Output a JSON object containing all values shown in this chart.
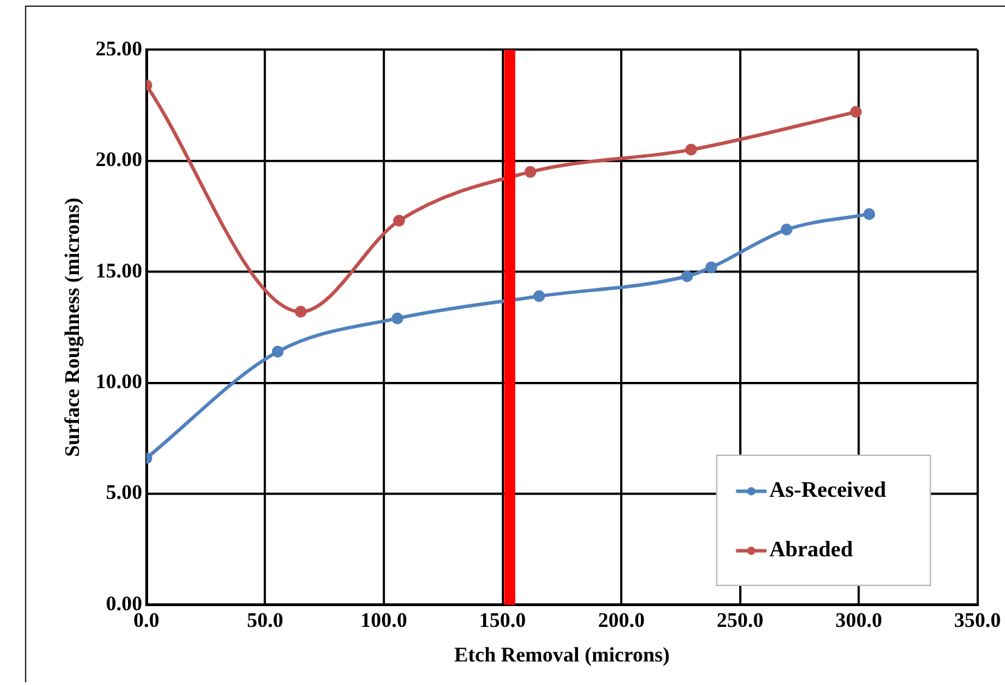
{
  "chart_data": {
    "type": "line",
    "xlabel": "Etch Removal (microns)",
    "ylabel": "Surface Roughness (microns)",
    "series": [
      {
        "name": "As-Received",
        "color": "#4f81bd",
        "x": [
          0,
          55.3,
          105.7,
          165.4,
          227.7,
          237.9,
          269.6,
          304.4
        ],
        "values": [
          6.6,
          11.4,
          12.9,
          13.9,
          14.8,
          15.2,
          16.9,
          17.6
        ]
      },
      {
        "name": "Abraded",
        "color": "#c0504d",
        "x": [
          0,
          65,
          106.4,
          161.7,
          229.4,
          298.8
        ],
        "values": [
          23.4,
          13.2,
          17.3,
          19.5,
          20.5,
          22.2
        ]
      }
    ],
    "xlim": [
      0,
      350
    ],
    "xticks": [
      {
        "value": 0,
        "label": "0.0"
      },
      {
        "value": 50,
        "label": "50.0"
      },
      {
        "value": 100,
        "label": "100.0"
      },
      {
        "value": 150,
        "label": "150.0"
      },
      {
        "value": 200,
        "label": "200.0"
      },
      {
        "value": 250,
        "label": "250.0"
      },
      {
        "value": 300,
        "label": "300.0"
      },
      {
        "value": 350,
        "label": "350.0"
      }
    ],
    "ylim": [
      0,
      25
    ],
    "yticks": [
      {
        "value": 0,
        "label": "0.00"
      },
      {
        "value": 5,
        "label": "5.00"
      },
      {
        "value": 10,
        "label": "10.00"
      },
      {
        "value": 15,
        "label": "15.00"
      },
      {
        "value": 20,
        "label": "20.00"
      },
      {
        "value": 25,
        "label": "25.00"
      }
    ],
    "ref_lines": [
      {
        "axis": "x",
        "value": 153,
        "color": "#ff0000"
      }
    ],
    "grid": true,
    "legend": "bottom right",
    "marker": "circle",
    "line_style": "solid"
  }
}
